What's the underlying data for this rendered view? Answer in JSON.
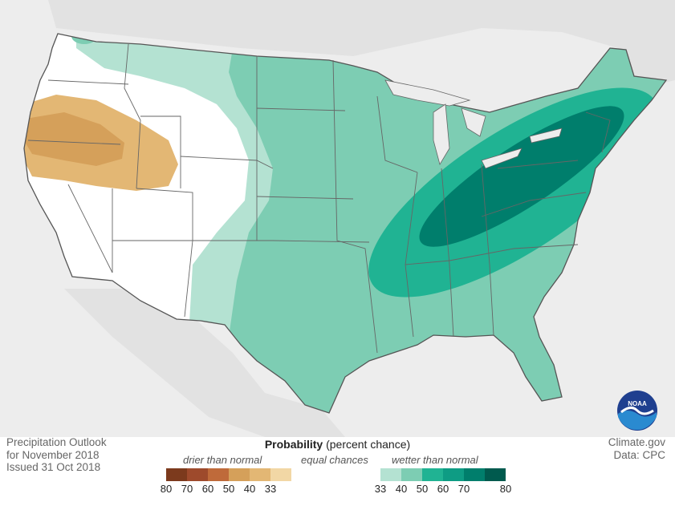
{
  "map": {
    "footer_left": [
      "Precipitation Outlook",
      "for November 2018",
      "Issued 31 Oct 2018"
    ],
    "footer_right": [
      "Climate.gov",
      "Data: CPC"
    ],
    "logo_text": "NOAA"
  },
  "legend": {
    "title_bold": "Probability",
    "title_rest": " (percent chance)",
    "categories": [
      "drier than normal",
      "equal chances",
      "wetter than normal"
    ],
    "tick_labels": [
      "80",
      "70",
      "60",
      "50",
      "40",
      "33",
      "33",
      "40",
      "50",
      "60",
      "70",
      "80"
    ],
    "colors": {
      "dry_80": "#7c3a1d",
      "dry_70": "#9e4a2c",
      "dry_60": "#bf6a3a",
      "dry_50": "#d5a05a",
      "dry_40": "#e3b774",
      "dry_33": "#f2d7a5",
      "equal": "#ffffff",
      "wet_33": "#b4e2d2",
      "wet_40": "#7dcdb3",
      "wet_50": "#20b393",
      "wet_60": "#0e9c84",
      "wet_70": "#007e6c",
      "wet_80": "#005a4e"
    }
  },
  "regions": [
    {
      "name": "drier-than-normal",
      "category": "below",
      "levels": [
        "33-40",
        "40-50"
      ],
      "area": "Oregon, northern California, southern Idaho"
    },
    {
      "name": "wetter-than-normal",
      "category": "above",
      "levels": [
        "33-40",
        "40-50",
        "50-60",
        "60-70"
      ],
      "area": "Central and eastern US, Appalachians, Northeast"
    }
  ]
}
